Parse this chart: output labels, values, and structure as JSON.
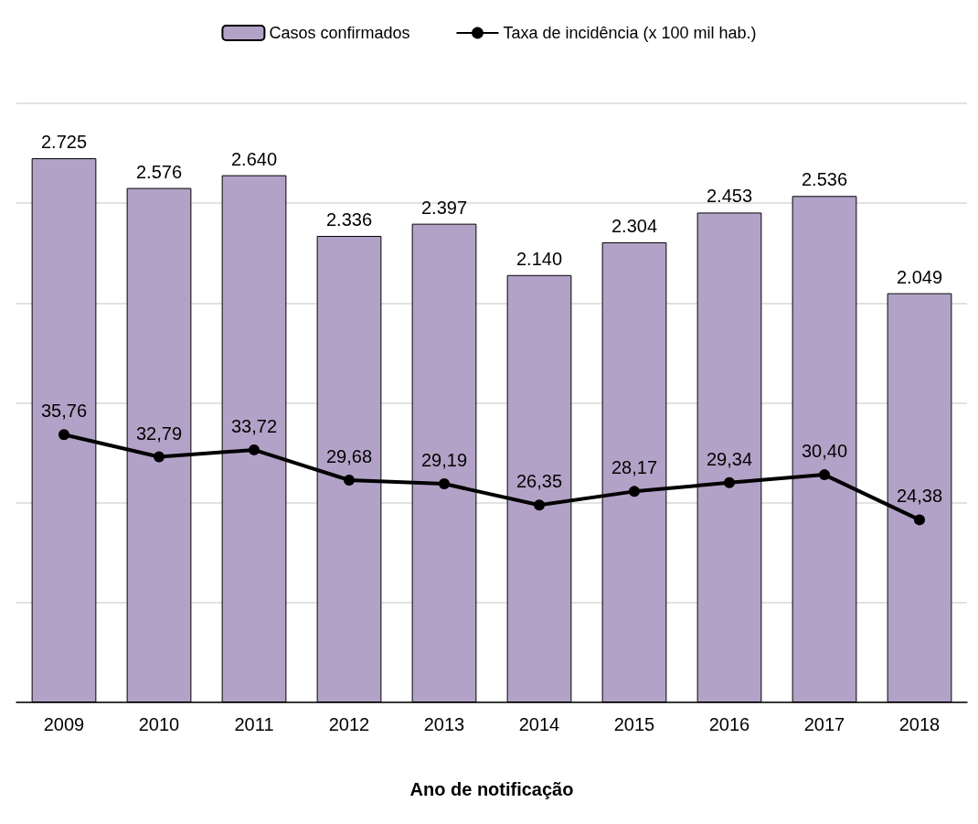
{
  "chart_data": {
    "type": "bar",
    "xlabel": "Ano de notificação",
    "categories": [
      "2009",
      "2010",
      "2011",
      "2012",
      "2013",
      "2014",
      "2015",
      "2016",
      "2017",
      "2018"
    ],
    "series": [
      {
        "name": "Casos confirmados",
        "color": "#b3a2c7",
        "values": [
          2725,
          2576,
          2640,
          2336,
          2397,
          2140,
          2304,
          2453,
          2536,
          2049
        ],
        "value_labels": [
          "2.725",
          "2.576",
          "2.640",
          "2.336",
          "2.397",
          "2.140",
          "2.304",
          "2.453",
          "2.536",
          "2.049"
        ]
      },
      {
        "name": "Taxa de incidência (x 100 mil hab.)",
        "type": "line",
        "axis": "y2",
        "color": "#000000",
        "marker": "circle",
        "values": [
          35.76,
          32.79,
          33.72,
          29.68,
          29.19,
          26.35,
          28.17,
          29.34,
          30.4,
          24.38
        ],
        "value_labels": [
          "35,76",
          "32,79",
          "33,72",
          "29,68",
          "29,19",
          "26,35",
          "28,17",
          "29,34",
          "30,40",
          "24,38"
        ]
      }
    ],
    "ylim": [
      0,
      3000
    ],
    "yticks": [
      0,
      500,
      1000,
      1500,
      2000,
      2500,
      3000
    ],
    "y2lim": [
      0,
      80
    ],
    "grid": "y",
    "legend": "top",
    "tick_labels": "x"
  }
}
